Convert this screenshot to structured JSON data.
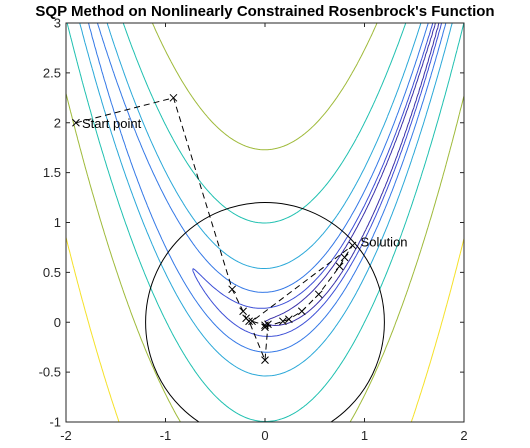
{
  "chart_data": {
    "type": "line",
    "title": "SQP Method on Nonlinearly Constrained Rosenbrock's Function",
    "xlabel": "",
    "ylabel": "",
    "xlim": [
      -2,
      2
    ],
    "ylim": [
      -1,
      3
    ],
    "x_ticks": [
      "-2",
      "-1",
      "0",
      "1",
      "2"
    ],
    "y_ticks": [
      "-1",
      "-0.5",
      "0",
      "0.5",
      "1",
      "1.5",
      "2",
      "2.5",
      "3"
    ],
    "grid": false,
    "contour": {
      "function": "rosenbrock",
      "levels": [
        1,
        3,
        10,
        30,
        100,
        300,
        1000
      ],
      "colors": [
        "#3a30a8",
        "#3d4fd6",
        "#3478e6",
        "#2aa8d8",
        "#1fc0b0",
        "#9fba3a",
        "#f5e12a"
      ]
    },
    "constraint_circle": {
      "center": [
        0,
        0
      ],
      "radius": 1.2,
      "color": "#000000"
    },
    "path": {
      "x": [
        -1.9,
        -0.92,
        -0.33,
        -0.22,
        -0.19,
        -0.16,
        0.0,
        0.03,
        0.0,
        0.18,
        0.24,
        0.37,
        0.54,
        0.75,
        0.8,
        0.88,
        -0.13,
        0.0
      ],
      "y": [
        2.0,
        2.25,
        0.33,
        0.11,
        0.04,
        0.01,
        -0.38,
        -0.02,
        -0.05,
        0.01,
        0.03,
        0.11,
        0.28,
        0.56,
        0.65,
        0.77,
        0.01,
        -0.03
      ]
    },
    "annotations": [
      {
        "text": "Start point",
        "x": -1.9,
        "y": 2.0
      },
      {
        "text": "Solution",
        "x": 0.9,
        "y": 0.81
      }
    ]
  }
}
